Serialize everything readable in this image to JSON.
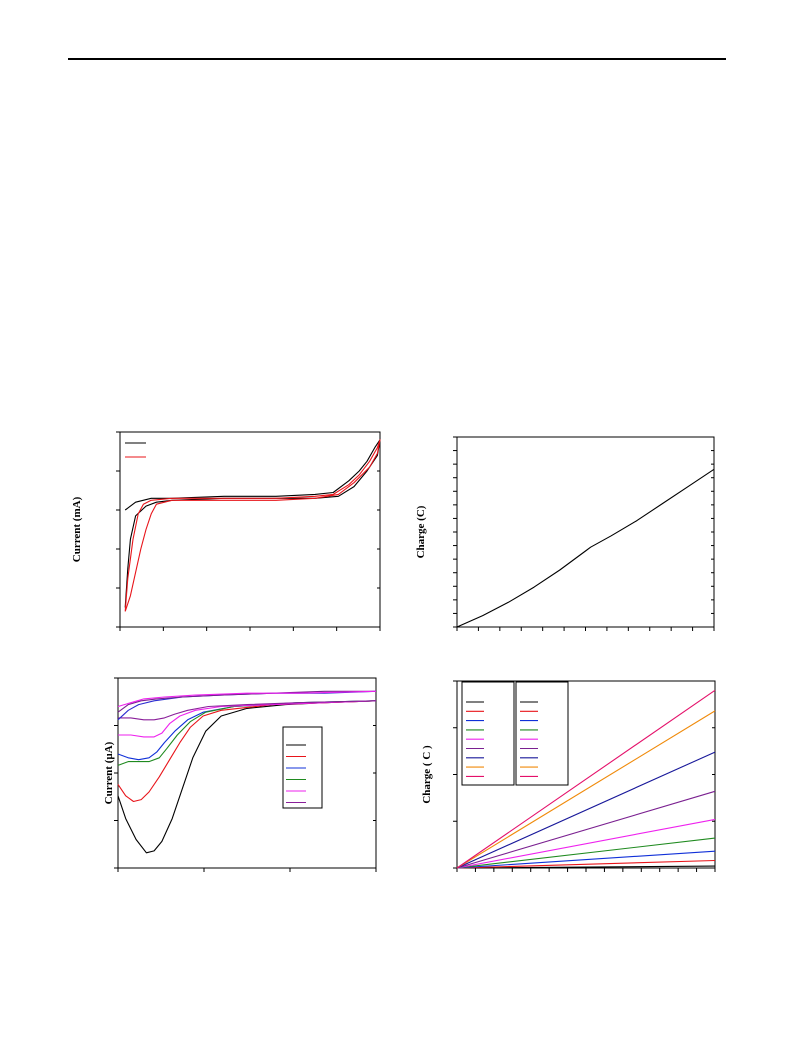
{
  "page": {
    "header_rule": true
  },
  "chart_data": [
    {
      "id": "cv-full",
      "type": "line",
      "ylabel": "Current (mA)",
      "xlim": [
        0,
        100
      ],
      "ylim": [
        0,
        100
      ],
      "x_ticks": 7,
      "y_ticks": 6,
      "legend": {
        "placement": "top-left",
        "framed": false,
        "entries": 2
      },
      "series": [
        {
          "color": "#000000",
          "points": [
            [
              2,
              60
            ],
            [
              6,
              64
            ],
            [
              12,
              66
            ],
            [
              20,
              66
            ],
            [
              40,
              67
            ],
            [
              60,
              67
            ],
            [
              75,
              68
            ],
            [
              82,
              69
            ],
            [
              88,
              75
            ],
            [
              92,
              80
            ],
            [
              95,
              85
            ],
            [
              98,
              92
            ],
            [
              100,
              96
            ],
            [
              99,
              88
            ],
            [
              95,
              80
            ],
            [
              90,
              72
            ],
            [
              84,
              67
            ],
            [
              75,
              66
            ],
            [
              60,
              66
            ],
            [
              40,
              66
            ],
            [
              20,
              65
            ],
            [
              14,
              64
            ],
            [
              10,
              62
            ],
            [
              6,
              57
            ],
            [
              4,
              45
            ],
            [
              3,
              30
            ],
            [
              2,
              10
            ]
          ]
        },
        {
          "color": "#e8141a",
          "points": [
            [
              2,
              8
            ],
            [
              3,
              25
            ],
            [
              5,
              45
            ],
            [
              7,
              58
            ],
            [
              9,
              63
            ],
            [
              12,
              65
            ],
            [
              20,
              66
            ],
            [
              40,
              66
            ],
            [
              60,
              66
            ],
            [
              75,
              67
            ],
            [
              82,
              68
            ],
            [
              88,
              73
            ],
            [
              92,
              78
            ],
            [
              96,
              85
            ],
            [
              99,
              92
            ],
            [
              100,
              96
            ],
            [
              99,
              89
            ],
            [
              96,
              82
            ],
            [
              90,
              74
            ],
            [
              84,
              68
            ],
            [
              75,
              66
            ],
            [
              60,
              65
            ],
            [
              40,
              65
            ],
            [
              20,
              65
            ],
            [
              14,
              63
            ],
            [
              12,
              58
            ],
            [
              10,
              50
            ],
            [
              8,
              40
            ],
            [
              6,
              28
            ],
            [
              4,
              16
            ],
            [
              2,
              8
            ]
          ]
        }
      ]
    },
    {
      "id": "charge-time",
      "type": "line",
      "ylabel": "Charge (C)",
      "xlim": [
        0,
        100
      ],
      "ylim": [
        0,
        100
      ],
      "x_ticks": 13,
      "y_ticks": 15,
      "series": [
        {
          "color": "#000000",
          "points": [
            [
              0,
              0
            ],
            [
              10,
              6
            ],
            [
              20,
              13
            ],
            [
              30,
              21
            ],
            [
              40,
              30
            ],
            [
              50,
              40
            ],
            [
              52,
              42
            ],
            [
              60,
              48
            ],
            [
              70,
              56
            ],
            [
              80,
              65
            ],
            [
              90,
              74
            ],
            [
              100,
              83
            ]
          ]
        }
      ]
    },
    {
      "id": "lsv-series",
      "type": "line",
      "ylabel": "Current (µA)",
      "xlim": [
        0,
        100
      ],
      "ylim": [
        0,
        100
      ],
      "x_ticks": 4,
      "y_ticks": 5,
      "legend": {
        "placement": "right",
        "framed": true,
        "entries": 6
      },
      "series": [
        {
          "color": "#000000",
          "points": [
            [
              0,
              38
            ],
            [
              3,
              26
            ],
            [
              7,
              15
            ],
            [
              11,
              8
            ],
            [
              14,
              9
            ],
            [
              17,
              14
            ],
            [
              21,
              26
            ],
            [
              25,
              42
            ],
            [
              29,
              58
            ],
            [
              34,
              72
            ],
            [
              40,
              80
            ],
            [
              50,
              84
            ],
            [
              65,
              86
            ],
            [
              80,
              87
            ],
            [
              100,
              88
            ]
          ]
        },
        {
          "color": "#e8141a",
          "points": [
            [
              0,
              44
            ],
            [
              3,
              38
            ],
            [
              6,
              35
            ],
            [
              9,
              36
            ],
            [
              12,
              40
            ],
            [
              16,
              48
            ],
            [
              20,
              57
            ],
            [
              24,
              66
            ],
            [
              28,
              74
            ],
            [
              33,
              80
            ],
            [
              40,
              83
            ],
            [
              60,
              86
            ],
            [
              80,
              87
            ],
            [
              100,
              88
            ]
          ]
        },
        {
          "color": "#1030d8",
          "points": [
            [
              0,
              60
            ],
            [
              4,
              58
            ],
            [
              8,
              57
            ],
            [
              12,
              58
            ],
            [
              15,
              61
            ],
            [
              18,
              66
            ],
            [
              22,
              72
            ],
            [
              27,
              78
            ],
            [
              33,
              82
            ],
            [
              45,
              85
            ],
            [
              70,
              87
            ],
            [
              100,
              88
            ]
          ]
        },
        {
          "color": "#1f8a1f",
          "points": [
            [
              0,
              54
            ],
            [
              4,
              56
            ],
            [
              8,
              56
            ],
            [
              12,
              56
            ],
            [
              16,
              58
            ],
            [
              19,
              63
            ],
            [
              23,
              70
            ],
            [
              28,
              77
            ],
            [
              34,
              82
            ],
            [
              45,
              85
            ],
            [
              70,
              87
            ],
            [
              100,
              88
            ]
          ]
        },
        {
          "color": "#ee22ee",
          "points": [
            [
              0,
              70
            ],
            [
              5,
              70
            ],
            [
              10,
              69
            ],
            [
              14,
              69
            ],
            [
              17,
              71
            ],
            [
              20,
              76
            ],
            [
              24,
              80
            ],
            [
              30,
              83
            ],
            [
              40,
              85
            ],
            [
              60,
              86
            ],
            [
              80,
              87
            ],
            [
              100,
              88
            ]
          ]
        },
        {
          "color": "#8a1f9a",
          "points": [
            [
              0,
              79
            ],
            [
              5,
              79
            ],
            [
              10,
              78
            ],
            [
              14,
              78
            ],
            [
              18,
              79
            ],
            [
              22,
              81
            ],
            [
              27,
              83
            ],
            [
              35,
              85
            ],
            [
              50,
              86
            ],
            [
              70,
              87
            ],
            [
              100,
              88
            ]
          ]
        },
        {
          "color": "#2b2bd0",
          "points": [
            [
              0,
              78
            ],
            [
              4,
              83
            ],
            [
              8,
              86
            ],
            [
              14,
              88
            ],
            [
              25,
              90
            ],
            [
              40,
              91
            ],
            [
              60,
              92
            ],
            [
              80,
              92
            ],
            [
              100,
              93
            ]
          ]
        },
        {
          "color": "#7a2090",
          "points": [
            [
              0,
              82
            ],
            [
              4,
              86
            ],
            [
              9,
              88
            ],
            [
              15,
              89
            ],
            [
              25,
              90
            ],
            [
              40,
              91
            ],
            [
              60,
              92
            ],
            [
              80,
              93
            ],
            [
              100,
              93
            ]
          ]
        },
        {
          "color": "#ee22ee",
          "points": [
            [
              0,
              85
            ],
            [
              5,
              87
            ],
            [
              10,
              89
            ],
            [
              18,
              90
            ],
            [
              30,
              91
            ],
            [
              50,
              92
            ],
            [
              70,
              92
            ],
            [
              100,
              93
            ]
          ]
        }
      ]
    },
    {
      "id": "charge-multi",
      "type": "line",
      "ylabel": "Charge ( C )",
      "xlim": [
        0,
        100
      ],
      "ylim": [
        0,
        100
      ],
      "x_ticks": 15,
      "y_ticks": 5,
      "legend": {
        "placement": "top-left",
        "framed": true,
        "columns": 2,
        "entries_per_column": 9
      },
      "series": [
        {
          "color": "#000000",
          "points": [
            [
              0,
              0
            ],
            [
              100,
              1
            ]
          ]
        },
        {
          "color": "#e8141a",
          "points": [
            [
              0,
              0
            ],
            [
              100,
              4
            ]
          ]
        },
        {
          "color": "#1030d8",
          "points": [
            [
              0,
              0
            ],
            [
              100,
              9
            ]
          ]
        },
        {
          "color": "#1f8a1f",
          "points": [
            [
              0,
              0
            ],
            [
              100,
              16
            ]
          ]
        },
        {
          "color": "#ee22ee",
          "points": [
            [
              0,
              0
            ],
            [
              100,
              26
            ]
          ]
        },
        {
          "color": "#7a2090",
          "points": [
            [
              0,
              0
            ],
            [
              100,
              41
            ]
          ]
        },
        {
          "color": "#18189a",
          "points": [
            [
              0,
              0
            ],
            [
              100,
              62
            ]
          ]
        },
        {
          "color": "#f08a0a",
          "points": [
            [
              0,
              0
            ],
            [
              100,
              84
            ]
          ]
        },
        {
          "color": "#e4106a",
          "points": [
            [
              0,
              0
            ],
            [
              100,
              95
            ]
          ]
        }
      ]
    }
  ]
}
